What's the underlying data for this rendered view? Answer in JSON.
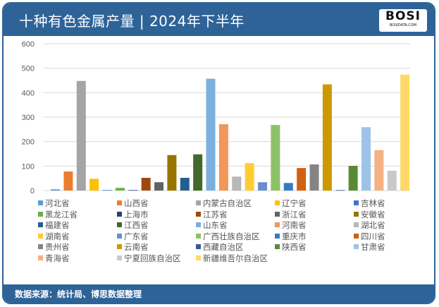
{
  "header": {
    "title": "十种有色金属产量 | 2024年下半年",
    "logo_text": "BOSI",
    "logo_sub": "BOSIDATA.COM"
  },
  "footer": {
    "source": "数据来源：统计局、博思数据整理"
  },
  "colors": {
    "frame": "#2E6398"
  },
  "chart_data": {
    "type": "bar",
    "title": "",
    "xlabel": "",
    "ylabel": "",
    "ylim": [
      0,
      600
    ],
    "yticks": [
      0,
      100,
      200,
      300,
      400,
      500,
      600
    ],
    "grid": true,
    "legend_placement": "bottom",
    "categories": [
      "河北省",
      "山西省",
      "内蒙古自治区",
      "辽宁省",
      "吉林省",
      "黑龙江省",
      "上海市",
      "江苏省",
      "浙江省",
      "安徽省",
      "福建省",
      "江西省",
      "山东省",
      "河南省",
      "湖北省",
      "湖南省",
      "广东省",
      "广西壮族自治区",
      "重庆市",
      "四川省",
      "贵州省",
      "云南省",
      "西藏自治区",
      "陕西省",
      "甘肃省",
      "青海省",
      "宁夏回族自治区",
      "新疆维吾尔自治区"
    ],
    "values": [
      5,
      78,
      448,
      48,
      2,
      11,
      2,
      52,
      34,
      145,
      52,
      148,
      457,
      271,
      57,
      112,
      34,
      268,
      31,
      92,
      107,
      434,
      2,
      101,
      259,
      165,
      81,
      474
    ],
    "colors": [
      "#5B9BD5",
      "#ED7D31",
      "#A5A5A5",
      "#FFC000",
      "#4472C4",
      "#70AD47",
      "#264478",
      "#9E480E",
      "#636363",
      "#997300",
      "#255E91",
      "#43682B",
      "#7CAFDD",
      "#F1975A",
      "#B7B7B7",
      "#FFCD33",
      "#698ED0",
      "#8CC168",
      "#327DC2",
      "#D26012",
      "#848484",
      "#CC9A00",
      "#335AA1",
      "#5A8A39",
      "#9DC3E6",
      "#F4B183",
      "#C9C9C9",
      "#FFD966"
    ]
  }
}
